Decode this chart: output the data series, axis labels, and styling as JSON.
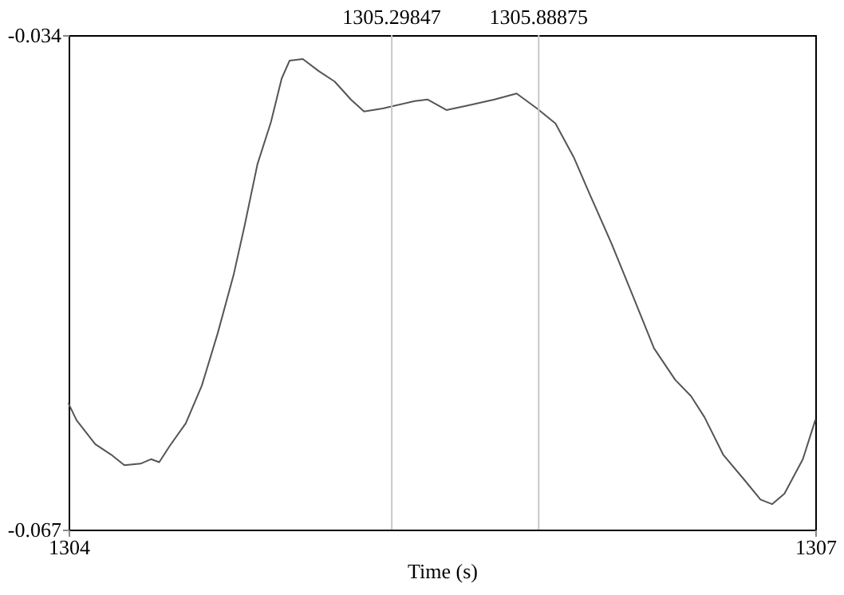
{
  "chart_data": {
    "type": "line",
    "xlabel": "Time (s)",
    "xlim": [
      1304,
      1307
    ],
    "xticks": [
      1304,
      1307
    ],
    "ylim": [
      -0.067,
      -0.034
    ],
    "yticks": [
      -0.067,
      -0.034
    ],
    "grid": false,
    "marker": "none",
    "line_style": "solid",
    "x": [
      1304.0,
      1304.032,
      1304.107,
      1304.171,
      1304.224,
      1304.289,
      1304.332,
      1304.364,
      1304.407,
      1304.471,
      1304.535,
      1304.599,
      1304.663,
      1304.706,
      1304.759,
      1304.813,
      1304.856,
      1304.888,
      1304.941,
      1305.005,
      1305.069,
      1305.134,
      1305.187,
      1305.262,
      1305.39,
      1305.443,
      1305.518,
      1305.604,
      1305.711,
      1305.8,
      1305.882,
      1305.956,
      1306.031,
      1306.096,
      1306.181,
      1306.267,
      1306.352,
      1306.437,
      1306.501,
      1306.555,
      1306.63,
      1306.716,
      1306.78,
      1306.827,
      1306.876,
      1306.95,
      1307.0
    ],
    "series": [
      {
        "color": "#555555",
        "values": [
          -0.0586,
          -0.0597,
          -0.0613,
          -0.062,
          -0.0627,
          -0.0626,
          -0.0623,
          -0.0625,
          -0.0614,
          -0.0599,
          -0.0574,
          -0.0539,
          -0.05,
          -0.0468,
          -0.0426,
          -0.0398,
          -0.0369,
          -0.0357,
          -0.0356,
          -0.0364,
          -0.0371,
          -0.0383,
          -0.0391,
          -0.0389,
          -0.0384,
          -0.0383,
          -0.039,
          -0.0387,
          -0.0383,
          -0.0379,
          -0.0389,
          -0.0399,
          -0.0422,
          -0.0447,
          -0.0479,
          -0.0514,
          -0.0549,
          -0.057,
          -0.0581,
          -0.0595,
          -0.062,
          -0.0637,
          -0.065,
          -0.0653,
          -0.0646,
          -0.0623,
          -0.0597
        ]
      }
    ],
    "ref_lines": [
      {
        "axis": "x",
        "value": 1305.29847,
        "label": "1305.29847",
        "color": "#c8c8c8"
      },
      {
        "axis": "x",
        "value": 1305.88875,
        "label": "1305.88875",
        "color": "#c8c8c8"
      }
    ]
  }
}
